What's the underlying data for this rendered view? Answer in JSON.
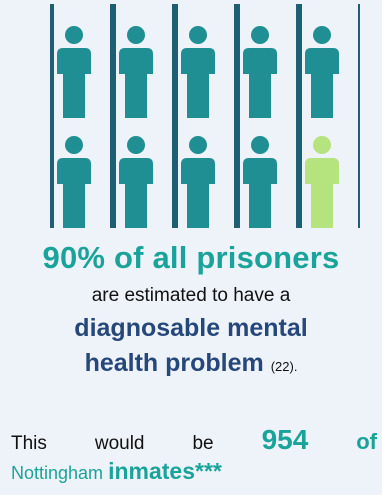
{
  "infographic": {
    "stat": "90% of all prisoners",
    "line2": "are estimated to have a",
    "line3": "diagnosable mental",
    "line4": "health problem",
    "reference": "(22).",
    "bottom": {
      "this": "This",
      "would": "would",
      "be": "be",
      "number": "954",
      "of": "of",
      "place": "Nottingham",
      "inmates": "inmates***"
    },
    "figures": {
      "total": 10,
      "highlighted": 1,
      "per_row": 5
    }
  },
  "colors": {
    "teal": "#1aa39a",
    "figure": "#1f8f93",
    "highlight": "#b5e47f",
    "bars": "#1f5f73",
    "navy": "#26477a",
    "background": "#eef3fa"
  }
}
